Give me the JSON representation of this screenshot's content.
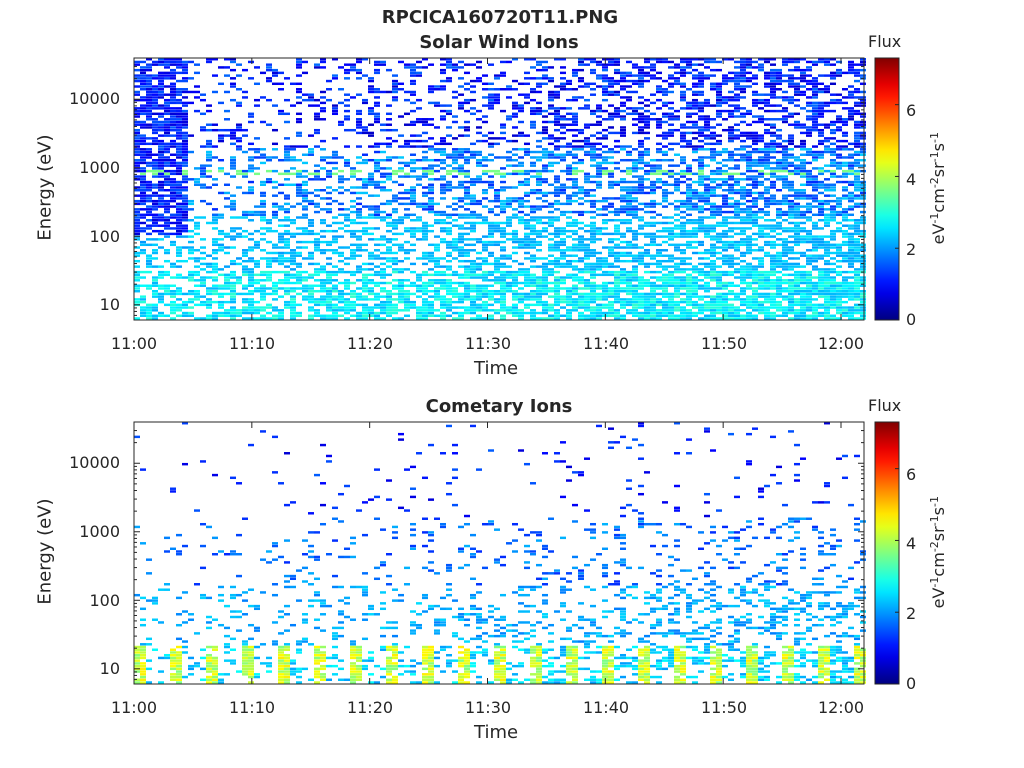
{
  "title": "RPCICA160720T11.PNG",
  "colorbar_title": "Flux",
  "colorbar_unit_parts": [
    "eV",
    "-1",
    "cm",
    "-2",
    "sr",
    "-1",
    "s",
    "-1"
  ],
  "colorbar_ticks": [
    "0",
    "2",
    "4",
    "6"
  ],
  "colorbar_range": [
    0,
    7.3
  ],
  "chart_data": [
    {
      "type": "heatmap",
      "title": "Solar Wind Ions",
      "xlabel": "Time",
      "ylabel": "Energy (eV)",
      "x_ticks": [
        "11:00",
        "11:10",
        "11:20",
        "11:30",
        "11:40",
        "11:50",
        "12:00"
      ],
      "y_ticks": [
        "10",
        "100",
        "1000",
        "10000"
      ],
      "y_scale": "log",
      "ylim": [
        6,
        40000
      ],
      "xlim": [
        "11:00",
        "12:02"
      ],
      "z_range": [
        0,
        7.3
      ],
      "features": {
        "sweep_peak_energy_eV": 850,
        "sweep_peak_flux": 3.6,
        "low_energy_flux": 2.5,
        "high_energy_flux": 1.0
      }
    },
    {
      "type": "heatmap",
      "title": "Cometary Ions",
      "xlabel": "Time",
      "ylabel": "Energy (eV)",
      "x_ticks": [
        "11:00",
        "11:10",
        "11:20",
        "11:30",
        "11:40",
        "11:50",
        "12:00"
      ],
      "y_ticks": [
        "10",
        "100",
        "1000",
        "10000"
      ],
      "y_scale": "log",
      "ylim": [
        6,
        40000
      ],
      "xlim": [
        "11:00",
        "12:02"
      ],
      "z_range": [
        0,
        7.3
      ],
      "features": {
        "low_energy_peak_flux": 4.5,
        "low_energy_band_eV": [
          6,
          25
        ],
        "mid_energy_flux": 2.0
      }
    }
  ]
}
